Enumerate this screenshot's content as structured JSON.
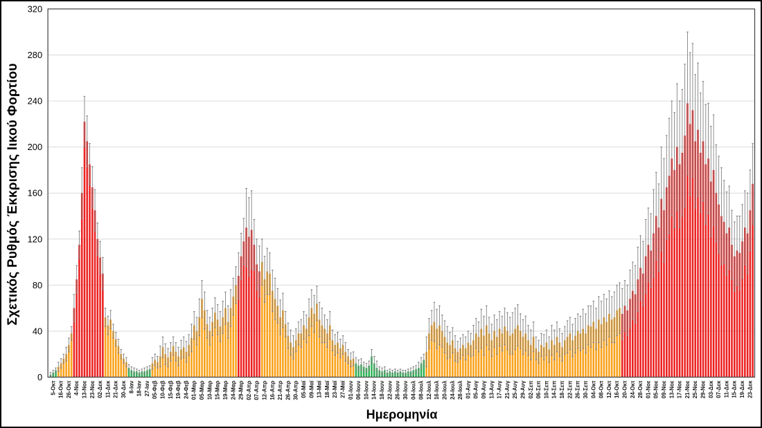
{
  "chart_data": {
    "type": "bar",
    "title": "",
    "xlabel": "Ημερομηνία",
    "ylabel": "Σχετικός Ρυθμός Έκκρισης Ιικού Φορτίου",
    "ylim": [
      0,
      320
    ],
    "yticks": [
      0,
      40,
      80,
      120,
      160,
      200,
      240,
      280,
      320
    ],
    "grid": "horizontal-light",
    "legend_position": "none",
    "bars_per_label": 3,
    "error_bars": "symmetric, gray, caps on both ends",
    "palette": {
      "green": "#2FB457",
      "orange": "#F9A21B",
      "red": "#EC2222",
      "error_bar": "#7F7F7F",
      "grid": "#D9D9D9",
      "axis": "#3F3F3F"
    },
    "labels": [
      "5-Οκτ",
      "16-Οκτ",
      "26-Οκτ",
      "4-Νοε",
      "13-Νοε",
      "23-Νοε",
      "02-Δεκ",
      "11-Δεκ",
      "21-Δεκ",
      "30-Δεκ",
      "8-Ιαν",
      "18-Ιαν",
      "27-Ιαν",
      "05-Φεβ",
      "10-Φεβ",
      "15-Φεβ",
      "19-Φεβ",
      "24-Φεβ",
      "01-Μαρ",
      "05-Μαρ",
      "10-Μαρ",
      "15-Μαρ",
      "19-Μαρ",
      "24-Μαρ",
      "29-Μαρ",
      "02-Απρ",
      "07-Απρ",
      "12-Απρ",
      "16-Απρ",
      "21-Απρ",
      "26-Απρ",
      "30-Απρ",
      "05-Μαϊ",
      "09-Μαϊ",
      "13-Μαϊ",
      "18-Μαϊ",
      "23-Μαϊ",
      "27-Μαϊ",
      "01-Ιουν",
      "06-Ιουν",
      "10-Ιουν",
      "14-Ιουν",
      "18-Ιουν",
      "22-Ιουν",
      "26-Ιουν",
      "30-Ιουν",
      "04-Ιουλ",
      "08-Ιουλ",
      "12-Ιουλ",
      "16-Ιουλ",
      "20-Ιουλ",
      "24-Ιουλ",
      "28-Ιουλ",
      "01-Αυγ",
      "05-Αυγ",
      "09-Αυγ",
      "13-Αυγ",
      "17-Αυγ",
      "21-Αυγ",
      "25-Αυγ",
      "29-Αυγ",
      "02-Σεπ",
      "06-Σεπ",
      "10-Σεπ",
      "14-Σεπ",
      "18-Σεπ",
      "22-Σεπ",
      "26-Σεπ",
      "30-Σεπ",
      "04-Οκτ",
      "08-Οκτ",
      "12-Οκτ",
      "16-Οκτ",
      "20-Οκτ",
      "24-Οκτ",
      "28-Οκτ",
      "01-Νοε",
      "05-Νοε",
      "09-Νοε",
      "13-Νοε",
      "17-Νοε",
      "21-Νοε",
      "25-Νοε",
      "29-Νοε",
      "03-Δεκ",
      "07-Δεκ",
      "11-Δεκ",
      "15-Δεκ",
      "19-Δεκ",
      "23-Δεκ"
    ],
    "values": [
      [
        2,
        4,
        6
      ],
      [
        9,
        12,
        16
      ],
      [
        20,
        28,
        38
      ],
      [
        60,
        85,
        115
      ],
      [
        160,
        222,
        205
      ],
      [
        185,
        165,
        145
      ],
      [
        120,
        104,
        90
      ],
      [
        52,
        45,
        50
      ],
      [
        40,
        33,
        27
      ],
      [
        20,
        16,
        13
      ],
      [
        8,
        6,
        5
      ],
      [
        5,
        4,
        5
      ],
      [
        5,
        6,
        7
      ],
      [
        12,
        15,
        13
      ],
      [
        18,
        26,
        20
      ],
      [
        17,
        22,
        27
      ],
      [
        22,
        18,
        24
      ],
      [
        26,
        22,
        28
      ],
      [
        34,
        45,
        40
      ],
      [
        52,
        68,
        58
      ],
      [
        46,
        40,
        48
      ],
      [
        56,
        50,
        44
      ],
      [
        52,
        60,
        48
      ],
      [
        60,
        70,
        80
      ],
      [
        88,
        105,
        118
      ],
      [
        130,
        122,
        128
      ],
      [
        115,
        98,
        92
      ],
      [
        100,
        85,
        92
      ],
      [
        90,
        75,
        68
      ],
      [
        62,
        52,
        58
      ],
      [
        46,
        36,
        30
      ],
      [
        26,
        32,
        38
      ],
      [
        38,
        45,
        42
      ],
      [
        52,
        60,
        55
      ],
      [
        64,
        50,
        45
      ],
      [
        42,
        38,
        45
      ],
      [
        32,
        28,
        30
      ],
      [
        25,
        28,
        22
      ],
      [
        18,
        15,
        16
      ],
      [
        12,
        10,
        11
      ],
      [
        9,
        8,
        10
      ],
      [
        18,
        12,
        8
      ],
      [
        6,
        5,
        6
      ],
      [
        4,
        5,
        4
      ],
      [
        5,
        4,
        5
      ],
      [
        4,
        4,
        5
      ],
      [
        5,
        6,
        7
      ],
      [
        8,
        12,
        15
      ],
      [
        22,
        38,
        45
      ],
      [
        48,
        42,
        45
      ],
      [
        40,
        35,
        30
      ],
      [
        28,
        32,
        25
      ],
      [
        22,
        25,
        28
      ],
      [
        25,
        30,
        28
      ],
      [
        32,
        38,
        35
      ],
      [
        42,
        36,
        45
      ],
      [
        38,
        32,
        40
      ],
      [
        35,
        42,
        38
      ],
      [
        44,
        40,
        36
      ],
      [
        38,
        42,
        45
      ],
      [
        40,
        35,
        38
      ],
      [
        32,
        28,
        35
      ],
      [
        25,
        22,
        28
      ],
      [
        26,
        30,
        24
      ],
      [
        32,
        28,
        35
      ],
      [
        30,
        26,
        32
      ],
      [
        35,
        38,
        32
      ],
      [
        36,
        40,
        38
      ],
      [
        42,
        38,
        45
      ],
      [
        44,
        48,
        42
      ],
      [
        50,
        46,
        52
      ],
      [
        48,
        55,
        50
      ],
      [
        52,
        58,
        60
      ],
      [
        55,
        62,
        58
      ],
      [
        68,
        75,
        72
      ],
      [
        85,
        95,
        90
      ],
      [
        105,
        115,
        110
      ],
      [
        125,
        140,
        130
      ],
      [
        155,
        145,
        165
      ],
      [
        175,
        190,
        180
      ],
      [
        200,
        185,
        195
      ],
      [
        210,
        238,
        220
      ],
      [
        232,
        205,
        215
      ],
      [
        195,
        205,
        185
      ],
      [
        190,
        170,
        180
      ],
      [
        160,
        150,
        140
      ],
      [
        135,
        125,
        130
      ],
      [
        115,
        105,
        110
      ],
      [
        108,
        118,
        130
      ],
      [
        125,
        145,
        168
      ]
    ],
    "errors": [
      2,
      4,
      6,
      12,
      22,
      18,
      14,
      8,
      6,
      4,
      3,
      2,
      3,
      5,
      9,
      8,
      8,
      9,
      12,
      16,
      12,
      13,
      14,
      16,
      20,
      34,
      22,
      20,
      18,
      15,
      11,
      10,
      12,
      16,
      15,
      12,
      9,
      8,
      6,
      5,
      4,
      6,
      3,
      2,
      2,
      2,
      3,
      5,
      13,
      17,
      14,
      11,
      9,
      10,
      13,
      17,
      14,
      15,
      16,
      18,
      15,
      13,
      10,
      11,
      13,
      12,
      14,
      15,
      17,
      18,
      20,
      20,
      22,
      22,
      25,
      28,
      32,
      38,
      45,
      50,
      55,
      62,
      58,
      52,
      48,
      42,
      36,
      30,
      32,
      35
    ],
    "colors": [
      "green",
      "orange",
      "orange",
      "red",
      "red",
      "red",
      "red",
      "orange",
      "orange",
      "orange",
      "green",
      "green",
      "green",
      "orange",
      "orange",
      "orange",
      "orange",
      "orange",
      "orange",
      "orange",
      "orange",
      "orange",
      "orange",
      "orange",
      "red",
      "red",
      "red",
      "orange",
      "orange",
      "orange",
      "orange",
      "orange",
      "orange",
      "orange",
      "orange",
      "orange",
      "orange",
      "orange",
      "orange",
      "green",
      "green",
      "green",
      "green",
      "green",
      "green",
      "green",
      "green",
      "green",
      "orange",
      "orange",
      "orange",
      "orange",
      "orange",
      "orange",
      "orange",
      "orange",
      "orange",
      "orange",
      "orange",
      "orange",
      "orange",
      "orange",
      "orange",
      "orange",
      "orange",
      "orange",
      "orange",
      "orange",
      "orange",
      "orange",
      "orange",
      "orange",
      "orange",
      "red",
      "red",
      "red",
      "red",
      "red",
      "red",
      "red",
      "red",
      "red",
      "red",
      "red",
      "red",
      "red",
      "red",
      "red",
      "red",
      "red"
    ]
  }
}
